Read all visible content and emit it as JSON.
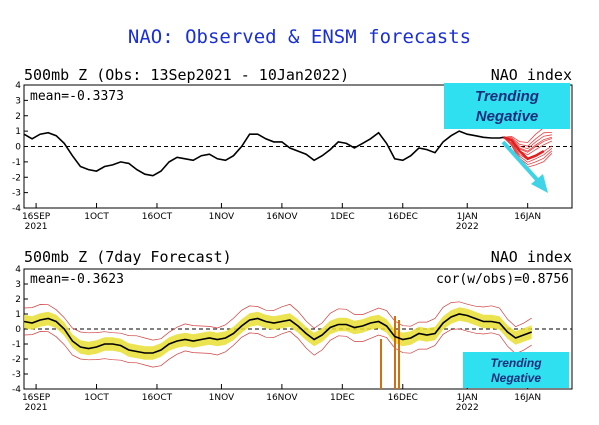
{
  "page_title": "NAO: Observed & ENSM forecasts",
  "colors": {
    "title": "#1a2fd6",
    "callout_bg": "#2ee0f0",
    "callout_text": "#1a2d7a",
    "arrow": "#3fd3e8",
    "ensemble": "#e02020",
    "spread": "#e8de30",
    "spike": "#d07010"
  },
  "chart_data": [
    {
      "type": "line",
      "title": "500mb Z (Obs: 13Sep2021 - 10Jan2022)",
      "index_label": "NAO index",
      "stat_label": "mean=-0.3373",
      "ylim": [
        -4,
        4
      ],
      "yticks": [
        "4",
        "3",
        "2",
        "1",
        "0",
        "-1",
        "-2",
        "-3",
        "-4"
      ],
      "xticks": [
        {
          "label": "16SEP",
          "sub": "2021",
          "day": 3
        },
        {
          "label": "1OCT",
          "sub": "",
          "day": 18
        },
        {
          "label": "16OCT",
          "sub": "",
          "day": 33
        },
        {
          "label": "1NOV",
          "sub": "",
          "day": 49
        },
        {
          "label": "16NOV",
          "sub": "",
          "day": 64
        },
        {
          "label": "1DEC",
          "sub": "",
          "day": 79
        },
        {
          "label": "16DEC",
          "sub": "",
          "day": 94
        },
        {
          "label": "1JAN",
          "sub": "2022",
          "day": 110
        },
        {
          "label": "16JAN",
          "sub": "",
          "day": 125
        }
      ],
      "xdomain": [
        0,
        136
      ],
      "series": [
        {
          "role": "observed",
          "x": [
            0,
            2,
            4,
            6,
            8,
            10,
            12,
            14,
            16,
            18,
            20,
            22,
            24,
            26,
            28,
            30,
            32,
            34,
            36,
            38,
            40,
            42,
            44,
            46,
            48,
            50,
            52,
            54,
            56,
            58,
            60,
            62,
            64,
            66,
            68,
            70,
            72,
            74,
            76,
            78,
            80,
            82,
            84,
            86,
            88,
            90,
            92,
            94,
            96,
            98,
            100,
            102,
            104,
            106,
            108,
            110,
            112,
            114,
            116,
            118,
            119
          ],
          "y": [
            0.8,
            0.5,
            0.8,
            0.9,
            0.7,
            0.2,
            -0.6,
            -1.3,
            -1.5,
            -1.6,
            -1.3,
            -1.2,
            -1.0,
            -1.1,
            -1.5,
            -1.8,
            -1.9,
            -1.6,
            -1.0,
            -0.7,
            -0.8,
            -0.9,
            -0.6,
            -0.5,
            -0.8,
            -0.9,
            -0.6,
            0.0,
            0.8,
            0.8,
            0.5,
            0.3,
            0.3,
            -0.1,
            -0.3,
            -0.5,
            -0.9,
            -0.6,
            -0.2,
            0.3,
            0.2,
            -0.1,
            0.2,
            0.5,
            0.9,
            0.2,
            -0.8,
            -0.9,
            -0.6,
            -0.1,
            -0.2,
            -0.4,
            0.3,
            0.7,
            1.0,
            0.8,
            0.7,
            0.6,
            0.55,
            0.55,
            0.6
          ]
        },
        {
          "role": "ensemble_mean",
          "x": [
            119,
            121,
            123,
            125,
            127,
            129
          ],
          "y": [
            0.6,
            0.4,
            -0.3,
            -0.8,
            -0.6,
            -0.3
          ]
        }
      ],
      "annotation": {
        "line1": "Trending",
        "line2": "Negative"
      }
    },
    {
      "type": "line",
      "title": "500mb Z (7day Forecast)",
      "index_label": "NAO index",
      "stat_label": "mean=-0.3623",
      "stat_label_right": "cor(w/obs)=0.8756",
      "ylim": [
        -4,
        4
      ],
      "yticks": [
        "4",
        "3",
        "2",
        "1",
        "0",
        "-1",
        "-2",
        "-3",
        "-4"
      ],
      "xticks": [
        {
          "label": "16SEP",
          "sub": "2021",
          "day": 3
        },
        {
          "label": "1OCT",
          "sub": "",
          "day": 18
        },
        {
          "label": "16OCT",
          "sub": "",
          "day": 33
        },
        {
          "label": "1NOV",
          "sub": "",
          "day": 49
        },
        {
          "label": "16NOV",
          "sub": "",
          "day": 64
        },
        {
          "label": "1DEC",
          "sub": "",
          "day": 79
        },
        {
          "label": "16DEC",
          "sub": "",
          "day": 94
        },
        {
          "label": "1JAN",
          "sub": "2022",
          "day": 110
        },
        {
          "label": "16JAN",
          "sub": "",
          "day": 125
        }
      ],
      "xdomain": [
        0,
        136
      ],
      "series": [
        {
          "role": "forecast_mean",
          "x": [
            0,
            2,
            4,
            6,
            8,
            10,
            12,
            14,
            16,
            18,
            20,
            22,
            24,
            26,
            28,
            30,
            32,
            34,
            36,
            38,
            40,
            42,
            44,
            46,
            48,
            50,
            52,
            54,
            56,
            58,
            60,
            62,
            64,
            66,
            68,
            70,
            72,
            74,
            76,
            78,
            80,
            82,
            84,
            86,
            88,
            90,
            92,
            94,
            96,
            98,
            100,
            102,
            104,
            106,
            108,
            110,
            112,
            114,
            116,
            118,
            120,
            122,
            124,
            126
          ],
          "y": [
            0.5,
            0.4,
            0.6,
            0.7,
            0.5,
            0.0,
            -0.8,
            -1.2,
            -1.3,
            -1.2,
            -1.0,
            -1.0,
            -1.1,
            -1.4,
            -1.5,
            -1.6,
            -1.6,
            -1.4,
            -1.0,
            -0.8,
            -0.7,
            -0.8,
            -0.7,
            -0.6,
            -0.7,
            -0.6,
            -0.3,
            0.2,
            0.6,
            0.7,
            0.5,
            0.4,
            0.5,
            0.6,
            0.2,
            -0.3,
            -0.7,
            -0.4,
            0.1,
            0.3,
            0.3,
            0.1,
            0.2,
            0.4,
            0.5,
            0.2,
            -0.5,
            -0.7,
            -0.6,
            -0.3,
            -0.4,
            -0.3,
            0.4,
            0.8,
            1.0,
            0.9,
            0.7,
            0.5,
            0.5,
            0.4,
            -0.2,
            -0.6,
            -0.4,
            -0.2
          ]
        }
      ],
      "annotation": {
        "line1": "Trending",
        "line2": "Negative"
      }
    }
  ]
}
